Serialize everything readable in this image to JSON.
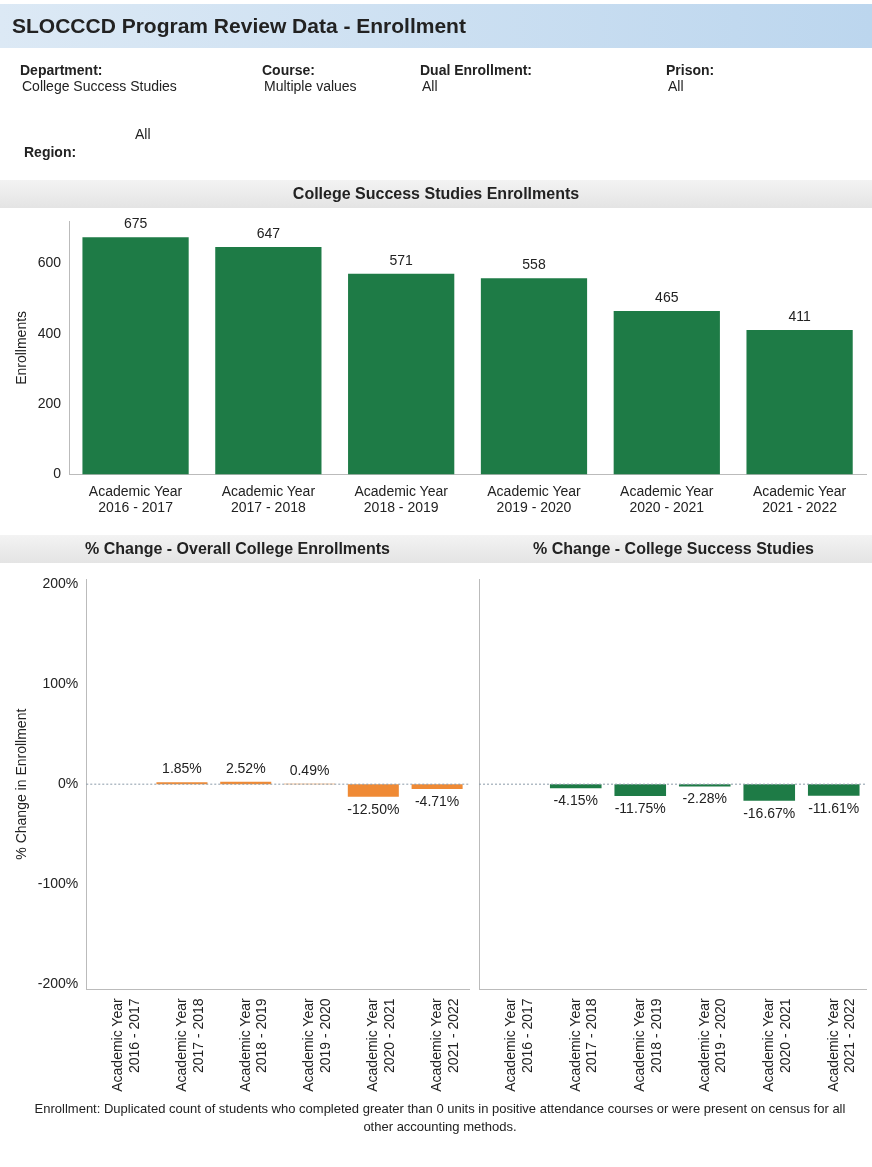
{
  "chart_data": [
    {
      "type": "other",
      "title": "SLOCCCD Program Review Data - Enrollment",
      "annotations": [
        "Department:",
        "College Success Studies",
        "Course:",
        "Multiple values",
        "Dual Enrollment:",
        "All",
        "Prison:",
        "All",
        "Region:",
        "All"
      ]
    },
    {
      "type": "bar",
      "title": "College Success Studies Enrollments",
      "ylabel": "Enrollments",
      "categories": [
        "Academic Year\n2016 - 2017",
        "Academic Year\n2017 - 2018",
        "Academic Year\n2018 - 2019",
        "Academic Year\n2019 - 2020",
        "Academic Year\n2020 - 2021",
        "Academic Year\n2021 - 2022"
      ],
      "values": [
        675,
        647,
        571,
        558,
        465,
        411
      ],
      "color": "#1e7b46",
      "ylim": [
        0,
        720
      ],
      "yticks": [
        0,
        200,
        400,
        600
      ],
      "data_labels": true
    },
    {
      "type": "bar",
      "title": "% Change - Overall College Enrollments",
      "ylabel": "% Change in Enrollment",
      "categories": [
        "Academic Year\n2016 - 2017",
        "Academic Year\n2017 - 2018",
        "Academic Year\n2018 - 2019",
        "Academic Year\n2019 - 2020",
        "Academic Year\n2020 - 2021",
        "Academic Year\n2021 - 2022"
      ],
      "values": [
        null,
        1.85,
        2.52,
        0.49,
        -12.5,
        -4.71
      ],
      "color": "#ef8a35",
      "value_labels": [
        null,
        "1.85%",
        "2.52%",
        "0.49%",
        "-12.50%",
        "-4.71%"
      ],
      "ylim": [
        -205,
        205
      ],
      "yticks": [
        {
          "value": -200,
          "label": "-200%"
        },
        {
          "value": -100,
          "label": "-100%"
        },
        {
          "value": 0,
          "label": "0%"
        },
        {
          "value": 100,
          "label": "100%"
        },
        {
          "value": 200,
          "label": "200%"
        }
      ],
      "ref_lines": [
        {
          "axis": "y",
          "value": 0,
          "color": "#8a9aa8",
          "line_style": "dotted"
        }
      ]
    },
    {
      "type": "bar",
      "title": "% Change - College Success Studies",
      "categories": [
        "Academic Year\n2016 - 2017",
        "Academic Year\n2017 - 2018",
        "Academic Year\n2018 - 2019",
        "Academic Year\n2019 - 2020",
        "Academic Year\n2020 - 2021",
        "Academic Year\n2021 - 2022"
      ],
      "values": [
        null,
        -4.15,
        -11.75,
        -2.28,
        -16.67,
        -11.61
      ],
      "color": "#1e7b46",
      "value_labels": [
        null,
        "-4.15%",
        "-11.75%",
        "-2.28%",
        "-16.67%",
        "-11.61%"
      ],
      "ylim": [
        -205,
        205
      ],
      "tick_labels": "x",
      "ref_lines": [
        {
          "axis": "y",
          "value": 0,
          "color": "#8a9aa8",
          "line_style": "dotted"
        }
      ],
      "annotations": [
        "Enrollment: Duplicated count of students who completed greater than 0 units in positive attendance courses or were present on census for all other accounting methods."
      ]
    }
  ]
}
